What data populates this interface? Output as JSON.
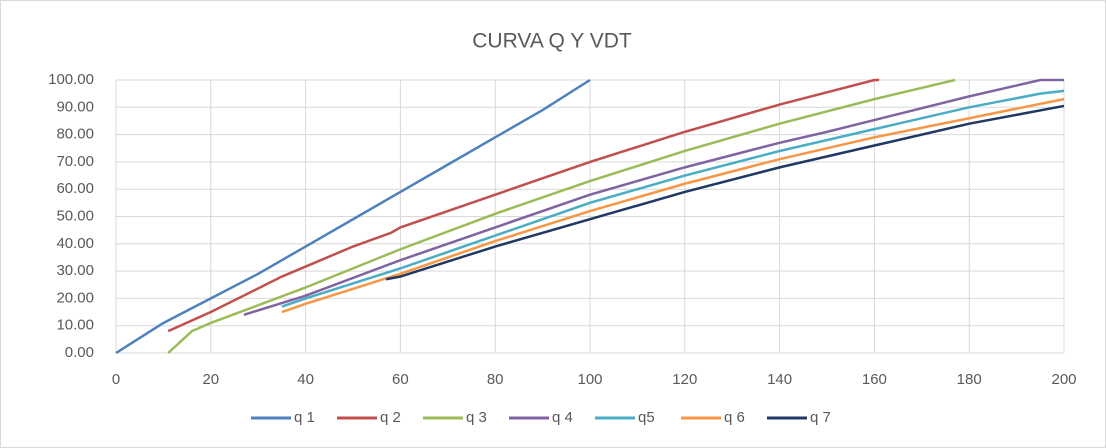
{
  "chart_data": {
    "type": "line",
    "title": "CURVA Q Y VDT",
    "xlim": [
      0,
      200
    ],
    "xticks": [
      0,
      20,
      40,
      60,
      80,
      100,
      120,
      140,
      160,
      180,
      200
    ],
    "ylim": [
      0,
      100
    ],
    "yticks": [
      {
        "value": 0,
        "label": "0.00"
      },
      {
        "value": 10,
        "label": "10.00"
      },
      {
        "value": 20,
        "label": "20.00"
      },
      {
        "value": 30,
        "label": "30.00"
      },
      {
        "value": 40,
        "label": "40.00"
      },
      {
        "value": 50,
        "label": "50.00"
      },
      {
        "value": 60,
        "label": "60.00"
      },
      {
        "value": 70,
        "label": "70.00"
      },
      {
        "value": 80,
        "label": "80.00"
      },
      {
        "value": 90,
        "label": "90.00"
      },
      {
        "value": 100,
        "label": "100.00"
      }
    ],
    "grid": true,
    "legend": "bottom",
    "series": [
      {
        "name": "q 1",
        "color": "#4f81bd",
        "x": [
          0,
          10,
          20,
          30,
          40,
          50,
          60,
          70,
          80,
          90,
          100
        ],
        "values": [
          0,
          11,
          20,
          29,
          39,
          49,
          59,
          69,
          79,
          89,
          100
        ]
      },
      {
        "name": "q 2",
        "color": "#c0504d",
        "x": [
          11,
          20,
          35,
          50,
          58,
          60,
          80,
          100,
          120,
          140,
          160,
          161
        ],
        "values": [
          8,
          15,
          28,
          39,
          44,
          46,
          58,
          70,
          81,
          91,
          100,
          100
        ]
      },
      {
        "name": "q 3",
        "color": "#9bbb59",
        "x": [
          11,
          16,
          20,
          40,
          60,
          80,
          100,
          120,
          140,
          160,
          177
        ],
        "values": [
          0,
          8,
          11,
          24,
          38,
          51,
          63,
          74,
          84,
          93,
          100
        ]
      },
      {
        "name": "q 4",
        "color": "#8064a2",
        "x": [
          27,
          40,
          60,
          80,
          100,
          120,
          140,
          150,
          180,
          195,
          200
        ],
        "values": [
          14,
          21,
          34,
          46,
          58,
          68,
          77,
          81,
          94,
          100,
          100
        ]
      },
      {
        "name": "q5",
        "color": "#4bacc6",
        "x": [
          35,
          40,
          60,
          80,
          100,
          120,
          140,
          160,
          180,
          195,
          200
        ],
        "values": [
          17,
          20,
          31,
          43,
          55,
          65,
          74,
          82,
          90,
          95,
          96
        ]
      },
      {
        "name": "q 6",
        "color": "#f79646",
        "x": [
          35,
          40,
          60,
          80,
          100,
          120,
          140,
          160,
          180,
          200
        ],
        "values": [
          15,
          18,
          29,
          41,
          52,
          62,
          71,
          79,
          86,
          93
        ]
      },
      {
        "name": "q 7",
        "color": "#1f3864",
        "x": [
          57,
          60,
          80,
          100,
          120,
          140,
          160,
          180,
          200
        ],
        "values": [
          27,
          28,
          39,
          49,
          59,
          68,
          76,
          84,
          90.5
        ]
      }
    ]
  }
}
